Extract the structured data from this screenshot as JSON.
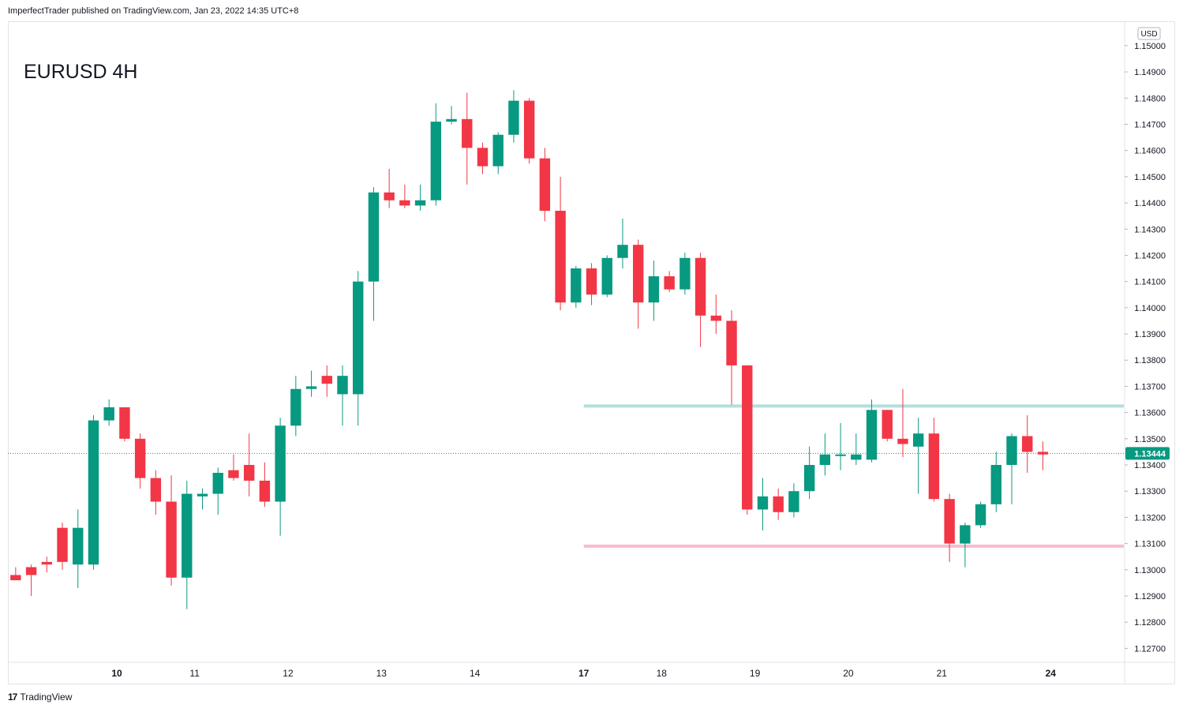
{
  "header": {
    "credit": "ImperfectTrader published on TradingView.com, Jan 23, 2022 14:35 UTC+8"
  },
  "footer": {
    "brand": "TradingView",
    "logo_glyph": "17"
  },
  "chart_data": {
    "type": "candlestick",
    "title": "EURUSD 4H",
    "currency": "USD",
    "last_price": "1.13444",
    "colors": {
      "up": "#26a69a",
      "up_body": "#089981",
      "down": "#f23645",
      "resistance": "#b2dfdb",
      "support": "#f8bbd0",
      "last_label": "#089981"
    },
    "yaxis": {
      "ticks": [
        "1.12700",
        "1.12800",
        "1.12900",
        "1.13000",
        "1.13100",
        "1.13200",
        "1.13300",
        "1.13400",
        "1.13500",
        "1.13600",
        "1.13700",
        "1.13800",
        "1.13900",
        "1.14000",
        "1.14100",
        "1.14200",
        "1.14300",
        "1.14400",
        "1.14500",
        "1.14600",
        "1.14700",
        "1.14800",
        "1.14900",
        "1.15000"
      ],
      "range": [
        1.1265,
        1.1509
      ]
    },
    "xaxis": {
      "labels": [
        {
          "text": "10",
          "bold": true,
          "at": 6.5
        },
        {
          "text": "11",
          "bold": false,
          "at": 11.5
        },
        {
          "text": "12",
          "bold": false,
          "at": 17.5
        },
        {
          "text": "13",
          "bold": false,
          "at": 23.5
        },
        {
          "text": "14",
          "bold": false,
          "at": 29.5
        },
        {
          "text": "17",
          "bold": true,
          "at": 36.5
        },
        {
          "text": "18",
          "bold": false,
          "at": 41.5
        },
        {
          "text": "19",
          "bold": false,
          "at": 47.5
        },
        {
          "text": "20",
          "bold": false,
          "at": 53.5
        },
        {
          "text": "21",
          "bold": false,
          "at": 59.5
        },
        {
          "text": "24",
          "bold": true,
          "at": 66.5
        }
      ],
      "bar_range": [
        -0.5,
        71.2
      ]
    },
    "levels": [
      {
        "name": "resistance",
        "price": 1.13625,
        "from_bar": 37
      },
      {
        "name": "support",
        "price": 1.1309,
        "from_bar": 37
      }
    ],
    "candles": [
      {
        "o": 1.1298,
        "h": 1.1301,
        "l": 1.1296,
        "c": 1.1296
      },
      {
        "o": 1.1301,
        "h": 1.1302,
        "l": 1.129,
        "c": 1.1298
      },
      {
        "o": 1.1303,
        "h": 1.1305,
        "l": 1.1299,
        "c": 1.1302
      },
      {
        "o": 1.1316,
        "h": 1.1318,
        "l": 1.13,
        "c": 1.1303
      },
      {
        "o": 1.1302,
        "h": 1.1323,
        "l": 1.1293,
        "c": 1.1316
      },
      {
        "o": 1.1302,
        "h": 1.1359,
        "l": 1.13,
        "c": 1.1357
      },
      {
        "o": 1.1357,
        "h": 1.1365,
        "l": 1.1355,
        "c": 1.1362
      },
      {
        "o": 1.1362,
        "h": 1.1362,
        "l": 1.1349,
        "c": 1.135
      },
      {
        "o": 1.135,
        "h": 1.1352,
        "l": 1.1331,
        "c": 1.1335
      },
      {
        "o": 1.1335,
        "h": 1.1338,
        "l": 1.1321,
        "c": 1.1326
      },
      {
        "o": 1.1326,
        "h": 1.1336,
        "l": 1.1294,
        "c": 1.1297
      },
      {
        "o": 1.1297,
        "h": 1.1334,
        "l": 1.1285,
        "c": 1.1329
      },
      {
        "o": 1.1328,
        "h": 1.1331,
        "l": 1.1323,
        "c": 1.1329
      },
      {
        "o": 1.1329,
        "h": 1.1339,
        "l": 1.1321,
        "c": 1.1337
      },
      {
        "o": 1.1338,
        "h": 1.1344,
        "l": 1.1334,
        "c": 1.1335
      },
      {
        "o": 1.134,
        "h": 1.1352,
        "l": 1.1328,
        "c": 1.1334
      },
      {
        "o": 1.1334,
        "h": 1.1341,
        "l": 1.1324,
        "c": 1.1326
      },
      {
        "o": 1.1326,
        "h": 1.1358,
        "l": 1.1313,
        "c": 1.1355
      },
      {
        "o": 1.1355,
        "h": 1.1374,
        "l": 1.1351,
        "c": 1.1369
      },
      {
        "o": 1.1369,
        "h": 1.1376,
        "l": 1.1366,
        "c": 1.137
      },
      {
        "o": 1.1374,
        "h": 1.1378,
        "l": 1.1366,
        "c": 1.1371
      },
      {
        "o": 1.1367,
        "h": 1.1378,
        "l": 1.1355,
        "c": 1.1374
      },
      {
        "o": 1.1367,
        "h": 1.1414,
        "l": 1.1355,
        "c": 1.141
      },
      {
        "o": 1.141,
        "h": 1.1446,
        "l": 1.1395,
        "c": 1.1444
      },
      {
        "o": 1.1444,
        "h": 1.1453,
        "l": 1.1438,
        "c": 1.1441
      },
      {
        "o": 1.1441,
        "h": 1.1447,
        "l": 1.1438,
        "c": 1.1439
      },
      {
        "o": 1.1439,
        "h": 1.1447,
        "l": 1.1437,
        "c": 1.1441
      },
      {
        "o": 1.1441,
        "h": 1.1478,
        "l": 1.1439,
        "c": 1.1471
      },
      {
        "o": 1.1471,
        "h": 1.1477,
        "l": 1.147,
        "c": 1.1472
      },
      {
        "o": 1.1472,
        "h": 1.1482,
        "l": 1.1447,
        "c": 1.1461
      },
      {
        "o": 1.1461,
        "h": 1.1463,
        "l": 1.1451,
        "c": 1.1454
      },
      {
        "o": 1.1454,
        "h": 1.1467,
        "l": 1.1451,
        "c": 1.1466
      },
      {
        "o": 1.1466,
        "h": 1.1483,
        "l": 1.1463,
        "c": 1.1479
      },
      {
        "o": 1.1479,
        "h": 1.148,
        "l": 1.1455,
        "c": 1.1457
      },
      {
        "o": 1.1457,
        "h": 1.1461,
        "l": 1.1433,
        "c": 1.1437
      },
      {
        "o": 1.1437,
        "h": 1.145,
        "l": 1.1399,
        "c": 1.1402
      },
      {
        "o": 1.1402,
        "h": 1.1416,
        "l": 1.14,
        "c": 1.1415
      },
      {
        "o": 1.1415,
        "h": 1.1417,
        "l": 1.1401,
        "c": 1.1405
      },
      {
        "o": 1.1405,
        "h": 1.142,
        "l": 1.1404,
        "c": 1.1419
      },
      {
        "o": 1.1419,
        "h": 1.1434,
        "l": 1.1415,
        "c": 1.1424
      },
      {
        "o": 1.1424,
        "h": 1.1426,
        "l": 1.1392,
        "c": 1.1402
      },
      {
        "o": 1.1402,
        "h": 1.1418,
        "l": 1.1395,
        "c": 1.1412
      },
      {
        "o": 1.1412,
        "h": 1.1414,
        "l": 1.1406,
        "c": 1.1407
      },
      {
        "o": 1.1407,
        "h": 1.1421,
        "l": 1.1405,
        "c": 1.1419
      },
      {
        "o": 1.1419,
        "h": 1.1421,
        "l": 1.1385,
        "c": 1.1397
      },
      {
        "o": 1.1397,
        "h": 1.1405,
        "l": 1.139,
        "c": 1.1395
      },
      {
        "o": 1.1395,
        "h": 1.1399,
        "l": 1.1363,
        "c": 1.1378
      },
      {
        "o": 1.1378,
        "h": 1.1378,
        "l": 1.1321,
        "c": 1.1323
      },
      {
        "o": 1.1323,
        "h": 1.1335,
        "l": 1.1315,
        "c": 1.1328
      },
      {
        "o": 1.1328,
        "h": 1.1331,
        "l": 1.1319,
        "c": 1.1322
      },
      {
        "o": 1.1322,
        "h": 1.1333,
        "l": 1.132,
        "c": 1.133
      },
      {
        "o": 1.133,
        "h": 1.1347,
        "l": 1.1327,
        "c": 1.134
      },
      {
        "o": 1.134,
        "h": 1.1352,
        "l": 1.1336,
        "c": 1.1344
      },
      {
        "o": 1.1344,
        "h": 1.1356,
        "l": 1.1338,
        "c": 1.1344
      },
      {
        "o": 1.1342,
        "h": 1.1352,
        "l": 1.134,
        "c": 1.1344
      },
      {
        "o": 1.1342,
        "h": 1.1365,
        "l": 1.1341,
        "c": 1.1361
      },
      {
        "o": 1.1361,
        "h": 1.1361,
        "l": 1.1349,
        "c": 1.135
      },
      {
        "o": 1.135,
        "h": 1.1369,
        "l": 1.1343,
        "c": 1.1348
      },
      {
        "o": 1.1347,
        "h": 1.1358,
        "l": 1.1329,
        "c": 1.1352
      },
      {
        "o": 1.1352,
        "h": 1.1358,
        "l": 1.1326,
        "c": 1.1327
      },
      {
        "o": 1.1327,
        "h": 1.1329,
        "l": 1.1303,
        "c": 1.131
      },
      {
        "o": 1.131,
        "h": 1.1318,
        "l": 1.1301,
        "c": 1.1317
      },
      {
        "o": 1.1317,
        "h": 1.1326,
        "l": 1.1316,
        "c": 1.1325
      },
      {
        "o": 1.1325,
        "h": 1.1345,
        "l": 1.1322,
        "c": 1.134
      },
      {
        "o": 1.134,
        "h": 1.1352,
        "l": 1.1325,
        "c": 1.1351
      },
      {
        "o": 1.1351,
        "h": 1.1359,
        "l": 1.1337,
        "c": 1.1345
      },
      {
        "o": 1.1345,
        "h": 1.1349,
        "l": 1.1338,
        "c": 1.1344
      }
    ]
  }
}
